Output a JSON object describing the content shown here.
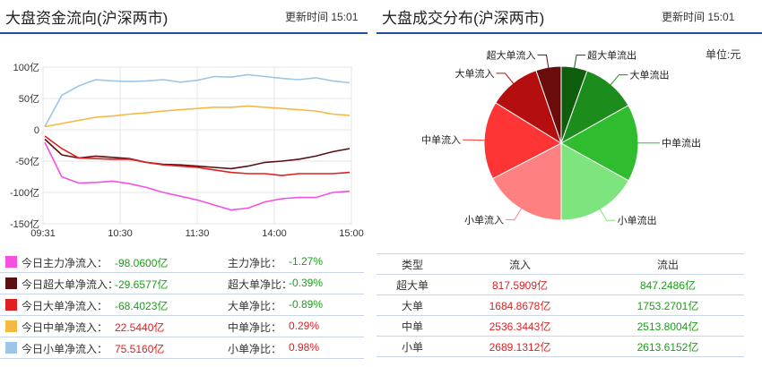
{
  "left": {
    "title": "大盘资金流向(沪深两市)",
    "update_time": "更新时间 15:01",
    "chart_data": {
      "type": "line",
      "y_ticks": [
        "100亿",
        "50亿",
        "0",
        "-50亿",
        "-100亿",
        "-150亿"
      ],
      "x_ticks": [
        "09:31",
        "10:30",
        "11:30",
        "14:00",
        "15:00"
      ],
      "ylim": [
        -150,
        100
      ],
      "grid": true,
      "series": [
        {
          "name": "今日小单净流入",
          "color": "#9bc6ea",
          "values": [
            5,
            55,
            70,
            80,
            78,
            77,
            78,
            80,
            76,
            79,
            85,
            84,
            88,
            85,
            82,
            80,
            83,
            78,
            75
          ]
        },
        {
          "name": "今日中单净流入",
          "color": "#f5b942",
          "values": [
            5,
            10,
            15,
            20,
            22,
            25,
            27,
            30,
            32,
            34,
            36,
            36,
            38,
            36,
            34,
            32,
            30,
            25,
            23
          ]
        },
        {
          "name": "今日超大单净流入",
          "color": "#5a0f10",
          "values": [
            -15,
            -40,
            -45,
            -42,
            -44,
            -46,
            -52,
            -55,
            -56,
            -58,
            -60,
            -62,
            -58,
            -52,
            -50,
            -47,
            -42,
            -35,
            -30
          ]
        },
        {
          "name": "今日大单净流入",
          "color": "#e02020",
          "values": [
            -10,
            -30,
            -45,
            -46,
            -47,
            -47,
            -52,
            -56,
            -58,
            -60,
            -64,
            -68,
            -70,
            -70,
            -73,
            -70,
            -70,
            -70,
            -68
          ]
        },
        {
          "name": "今日主力净流入",
          "color": "#f550e0",
          "values": [
            -20,
            -75,
            -85,
            -84,
            -82,
            -86,
            -92,
            -100,
            -106,
            -112,
            -120,
            -128,
            -125,
            -115,
            -110,
            -108,
            -108,
            -100,
            -98
          ]
        }
      ]
    },
    "legend": [
      {
        "name": "今日主力净流入：",
        "value": "-98.0600亿",
        "ratio_name": "主力净比：",
        "ratio": "-1.27%",
        "color": "#f550e0",
        "tone": "green"
      },
      {
        "name": "今日超大单净流入：",
        "value": "-29.6577亿",
        "ratio_name": "超大单净比：",
        "ratio": "-0.39%",
        "color": "#5a0f10",
        "tone": "green"
      },
      {
        "name": "今日大单净流入：",
        "value": "-68.4023亿",
        "ratio_name": "大单净比：",
        "ratio": "-0.89%",
        "color": "#e02020",
        "tone": "green"
      },
      {
        "name": "今日中单净流入：",
        "value": "22.5440亿",
        "ratio_name": "中单净比：",
        "ratio": "0.29%",
        "color": "#f5b942",
        "tone": "red"
      },
      {
        "name": "今日小单净流入：",
        "value": "75.5160亿",
        "ratio_name": "小单净比：",
        "ratio": "0.98%",
        "color": "#9bc6ea",
        "tone": "red"
      }
    ]
  },
  "right": {
    "title": "大盘成交分布(沪深两市)",
    "update_time": "更新时间 15:01",
    "unit": "单位:元",
    "chart_data": {
      "type": "pie",
      "slices": [
        {
          "label": "超大单流出",
          "value": 847.2486,
          "color": "#0e5e0e"
        },
        {
          "label": "大单流出",
          "value": 1753.2701,
          "color": "#1c8c1c"
        },
        {
          "label": "中单流出",
          "value": 2513.8004,
          "color": "#2fbd2f"
        },
        {
          "label": "小单流出",
          "value": 2613.6152,
          "color": "#7ee57e"
        },
        {
          "label": "小单流入",
          "value": 2689.1312,
          "color": "#ff8080"
        },
        {
          "label": "中单流入",
          "value": 2536.3443,
          "color": "#ff3535"
        },
        {
          "label": "大单流入",
          "value": 1684.8678,
          "color": "#b50e0e"
        },
        {
          "label": "超大单流入",
          "value": 817.5909,
          "color": "#6a0c0c"
        }
      ]
    },
    "table": {
      "headers": [
        "类型",
        "流入",
        "流出"
      ],
      "rows": [
        {
          "type": "超大单",
          "in": "817.5909亿",
          "out": "847.2486亿"
        },
        {
          "type": "大单",
          "in": "1684.8678亿",
          "out": "1753.2701亿"
        },
        {
          "type": "中单",
          "in": "2536.3443亿",
          "out": "2513.8004亿"
        },
        {
          "type": "小单",
          "in": "2689.1312亿",
          "out": "2613.6152亿"
        }
      ]
    }
  }
}
